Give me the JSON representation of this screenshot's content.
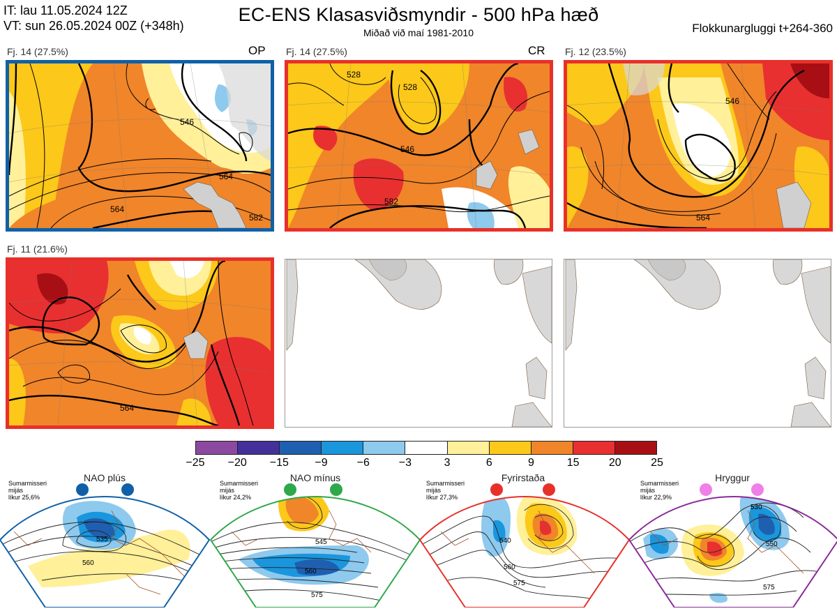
{
  "header": {
    "it_line": "IT: lau 11.05.2024 12Z",
    "vt_line": "VT: sun 26.05.2024 00Z  (+348h)",
    "title": "EC-ENS Klasasviðsmyndir - 500 hPa hæð",
    "subtitle": "Miðað við maí 1981-2010",
    "window": "Flokkunargluggi t+264-360"
  },
  "panels": [
    {
      "label": "Fj. 14 (27.5%)",
      "tag": "OP",
      "frame_color": "#1060a8",
      "contour_labels": [
        "546",
        "546",
        "546",
        "546",
        "564",
        "564",
        "582",
        "582",
        "546"
      ]
    },
    {
      "label": "Fj. 14 (27.5%)",
      "tag": "CR",
      "frame_color": "#e8302a",
      "contour_labels": [
        "546",
        "528",
        "528",
        "546",
        "564",
        "564",
        "564",
        "582",
        "564",
        "564"
      ]
    },
    {
      "label": "Fj. 12 (23.5%)",
      "tag": "",
      "frame_color": "#e8302a",
      "contour_labels": [
        "546",
        "546",
        "564",
        "564",
        "546",
        "564",
        "564"
      ]
    },
    {
      "label": "Fj. 11 (21.6%)",
      "tag": "",
      "frame_color": "#e8302a",
      "contour_labels": [
        "546",
        "564",
        "546",
        "564",
        "564",
        "564",
        "564"
      ]
    }
  ],
  "colorbar": {
    "colors": [
      "#8b4aa0",
      "#44309a",
      "#1f5fb0",
      "#1a96dd",
      "#8ec9ee",
      "#ffffff",
      "#fff099",
      "#fcc81a",
      "#f0852a",
      "#e83030",
      "#a80f14"
    ],
    "ticks": [
      "−25",
      "−20",
      "−15",
      "−9",
      "−6",
      "−3",
      "3",
      "6",
      "9",
      "15",
      "20",
      "25"
    ]
  },
  "regimes": [
    {
      "name": "NAO plús",
      "season": "Sumarmisseri",
      "period": "mijás",
      "prob": "líkur 25,6%",
      "color": "#1060a8",
      "dot_color": "#1060a8",
      "labels": [
        "535",
        "560"
      ]
    },
    {
      "name": "NAO mínus",
      "season": "Sumarmisseri",
      "period": "mijás",
      "prob": "líkur 24,2%",
      "color": "#2ea84a",
      "dot_color": "#2ea84a",
      "labels": [
        "545",
        "560",
        "575"
      ]
    },
    {
      "name": "Fyrirstaða",
      "season": "Sumarmisseri",
      "period": "mijás",
      "prob": "líkur 27,3%",
      "color": "#e8302a",
      "dot_color": "#e8302a",
      "labels": [
        "540",
        "560",
        "575"
      ]
    },
    {
      "name": "Hryggur",
      "season": "Sumarmisseri",
      "period": "mijás",
      "prob": "líkur 22,9%",
      "color": "#8a2a9a",
      "dot_color": "#ee80e8",
      "labels": [
        "530",
        "550",
        "575"
      ]
    }
  ]
}
